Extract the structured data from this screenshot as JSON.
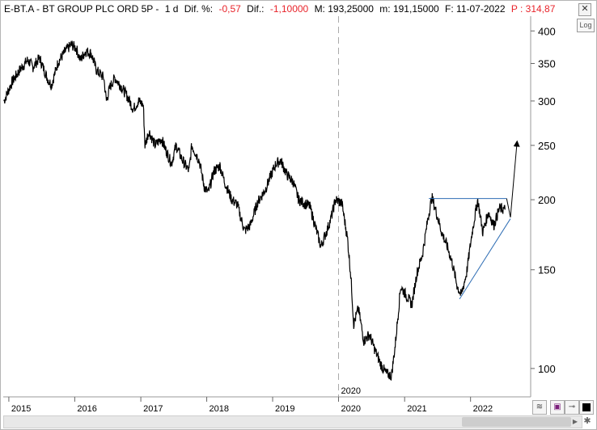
{
  "header": {
    "symbol": "E-BT.A - BT GROUP PLC ORD 5P -",
    "interval": "1 d",
    "dif_pct_label": "Dif. %:",
    "dif_pct_value": "-0,57",
    "dif_label": "Dif.:",
    "dif_value": "-1,10000",
    "max_label": "M: 193,25000",
    "min_label": "m: 191,15000",
    "date_label": "F: 11-07-2022",
    "price_label": "P : 314,87"
  },
  "toolbar": {
    "log_label": "Log",
    "close_icon": "close-icon"
  },
  "chart_data": {
    "type": "line",
    "scale": "log",
    "ylim": [
      89,
      425
    ],
    "xlim": [
      "2014-12-01",
      "2022-11-30"
    ],
    "yticks": [
      100,
      150,
      200,
      250,
      300,
      350,
      400
    ],
    "xticks": [
      "2015",
      "2016",
      "2017",
      "2018",
      "2019",
      "2020",
      "2021",
      "2022"
    ],
    "divider_label": "2020",
    "series": [
      {
        "points": [
          [
            "2014-12-05",
            300
          ],
          [
            "2015-01-20",
            325
          ],
          [
            "2015-03-01",
            340
          ],
          [
            "2015-04-15",
            355
          ],
          [
            "2015-05-15",
            345
          ],
          [
            "2015-06-20",
            358
          ],
          [
            "2015-08-01",
            330
          ],
          [
            "2015-08-25",
            320
          ],
          [
            "2015-10-01",
            352
          ],
          [
            "2015-11-15",
            370
          ],
          [
            "2015-12-15",
            378
          ],
          [
            "2016-01-10",
            372
          ],
          [
            "2016-02-01",
            355
          ],
          [
            "2016-03-01",
            368
          ],
          [
            "2016-04-01",
            365
          ],
          [
            "2016-05-01",
            340
          ],
          [
            "2016-06-10",
            330
          ],
          [
            "2016-06-24",
            300
          ],
          [
            "2016-07-15",
            318
          ],
          [
            "2016-08-10",
            330
          ],
          [
            "2016-09-15",
            318
          ],
          [
            "2016-10-20",
            305
          ],
          [
            "2016-11-20",
            290
          ],
          [
            "2016-12-20",
            300
          ],
          [
            "2017-01-15",
            295
          ],
          [
            "2017-01-24",
            250
          ],
          [
            "2017-02-15",
            265
          ],
          [
            "2017-03-20",
            250
          ],
          [
            "2017-04-25",
            257
          ],
          [
            "2017-05-20",
            245
          ],
          [
            "2017-06-20",
            232
          ],
          [
            "2017-07-15",
            250
          ],
          [
            "2017-08-20",
            235
          ],
          [
            "2017-09-25",
            225
          ],
          [
            "2017-10-10",
            250
          ],
          [
            "2017-11-20",
            235
          ],
          [
            "2017-12-20",
            210
          ],
          [
            "2018-01-10",
            206
          ],
          [
            "2018-02-10",
            225
          ],
          [
            "2018-03-15",
            230
          ],
          [
            "2018-04-10",
            215
          ],
          [
            "2018-05-20",
            200
          ],
          [
            "2018-06-20",
            196
          ],
          [
            "2018-07-10",
            185
          ],
          [
            "2018-07-30",
            176
          ],
          [
            "2018-08-30",
            180
          ],
          [
            "2018-10-10",
            198
          ],
          [
            "2018-11-20",
            208
          ],
          [
            "2018-12-20",
            220
          ],
          [
            "2019-01-20",
            232
          ],
          [
            "2019-02-15",
            235
          ],
          [
            "2019-03-20",
            222
          ],
          [
            "2019-04-25",
            215
          ],
          [
            "2019-05-25",
            200
          ],
          [
            "2019-06-25",
            197
          ],
          [
            "2019-07-25",
            195
          ],
          [
            "2019-08-20",
            182
          ],
          [
            "2019-09-25",
            165
          ],
          [
            "2019-10-25",
            175
          ],
          [
            "2019-11-20",
            185
          ],
          [
            "2019-12-15",
            200
          ],
          [
            "2020-01-20",
            197
          ],
          [
            "2020-02-20",
            170
          ],
          [
            "2020-03-10",
            145
          ],
          [
            "2020-03-25",
            120
          ],
          [
            "2020-04-20",
            128
          ],
          [
            "2020-05-20",
            112
          ],
          [
            "2020-06-20",
            115
          ],
          [
            "2020-07-20",
            108
          ],
          [
            "2020-08-20",
            102
          ],
          [
            "2020-09-20",
            98
          ],
          [
            "2020-10-20",
            97
          ],
          [
            "2020-11-10",
            110
          ],
          [
            "2020-12-10",
            140
          ],
          [
            "2021-01-10",
            135
          ],
          [
            "2021-02-10",
            130
          ],
          [
            "2021-03-10",
            148
          ],
          [
            "2021-04-10",
            160
          ],
          [
            "2021-05-10",
            185
          ],
          [
            "2021-06-01",
            202
          ],
          [
            "2021-06-25",
            190
          ],
          [
            "2021-07-25",
            175
          ],
          [
            "2021-08-25",
            165
          ],
          [
            "2021-09-20",
            155
          ],
          [
            "2021-10-20",
            140
          ],
          [
            "2021-11-10",
            135
          ],
          [
            "2021-12-10",
            148
          ],
          [
            "2022-01-10",
            175
          ],
          [
            "2022-02-10",
            200
          ],
          [
            "2022-03-10",
            175
          ],
          [
            "2022-04-10",
            190
          ],
          [
            "2022-05-10",
            180
          ],
          [
            "2022-06-10",
            193
          ],
          [
            "2022-07-11",
            192
          ]
        ]
      }
    ],
    "annotations": [
      {
        "type": "resistance-line",
        "from": [
          "2021-05-15",
          201
        ],
        "to": [
          "2022-07-20",
          201
        ]
      },
      {
        "type": "support-line",
        "from": [
          "2021-11-01",
          133
        ],
        "to": [
          "2022-08-10",
          185
        ]
      },
      {
        "type": "projection-arrow",
        "points": [
          [
            "2022-07-20",
            201
          ],
          [
            "2022-08-10",
            186
          ],
          [
            "2022-09-15",
            252
          ]
        ]
      }
    ]
  }
}
